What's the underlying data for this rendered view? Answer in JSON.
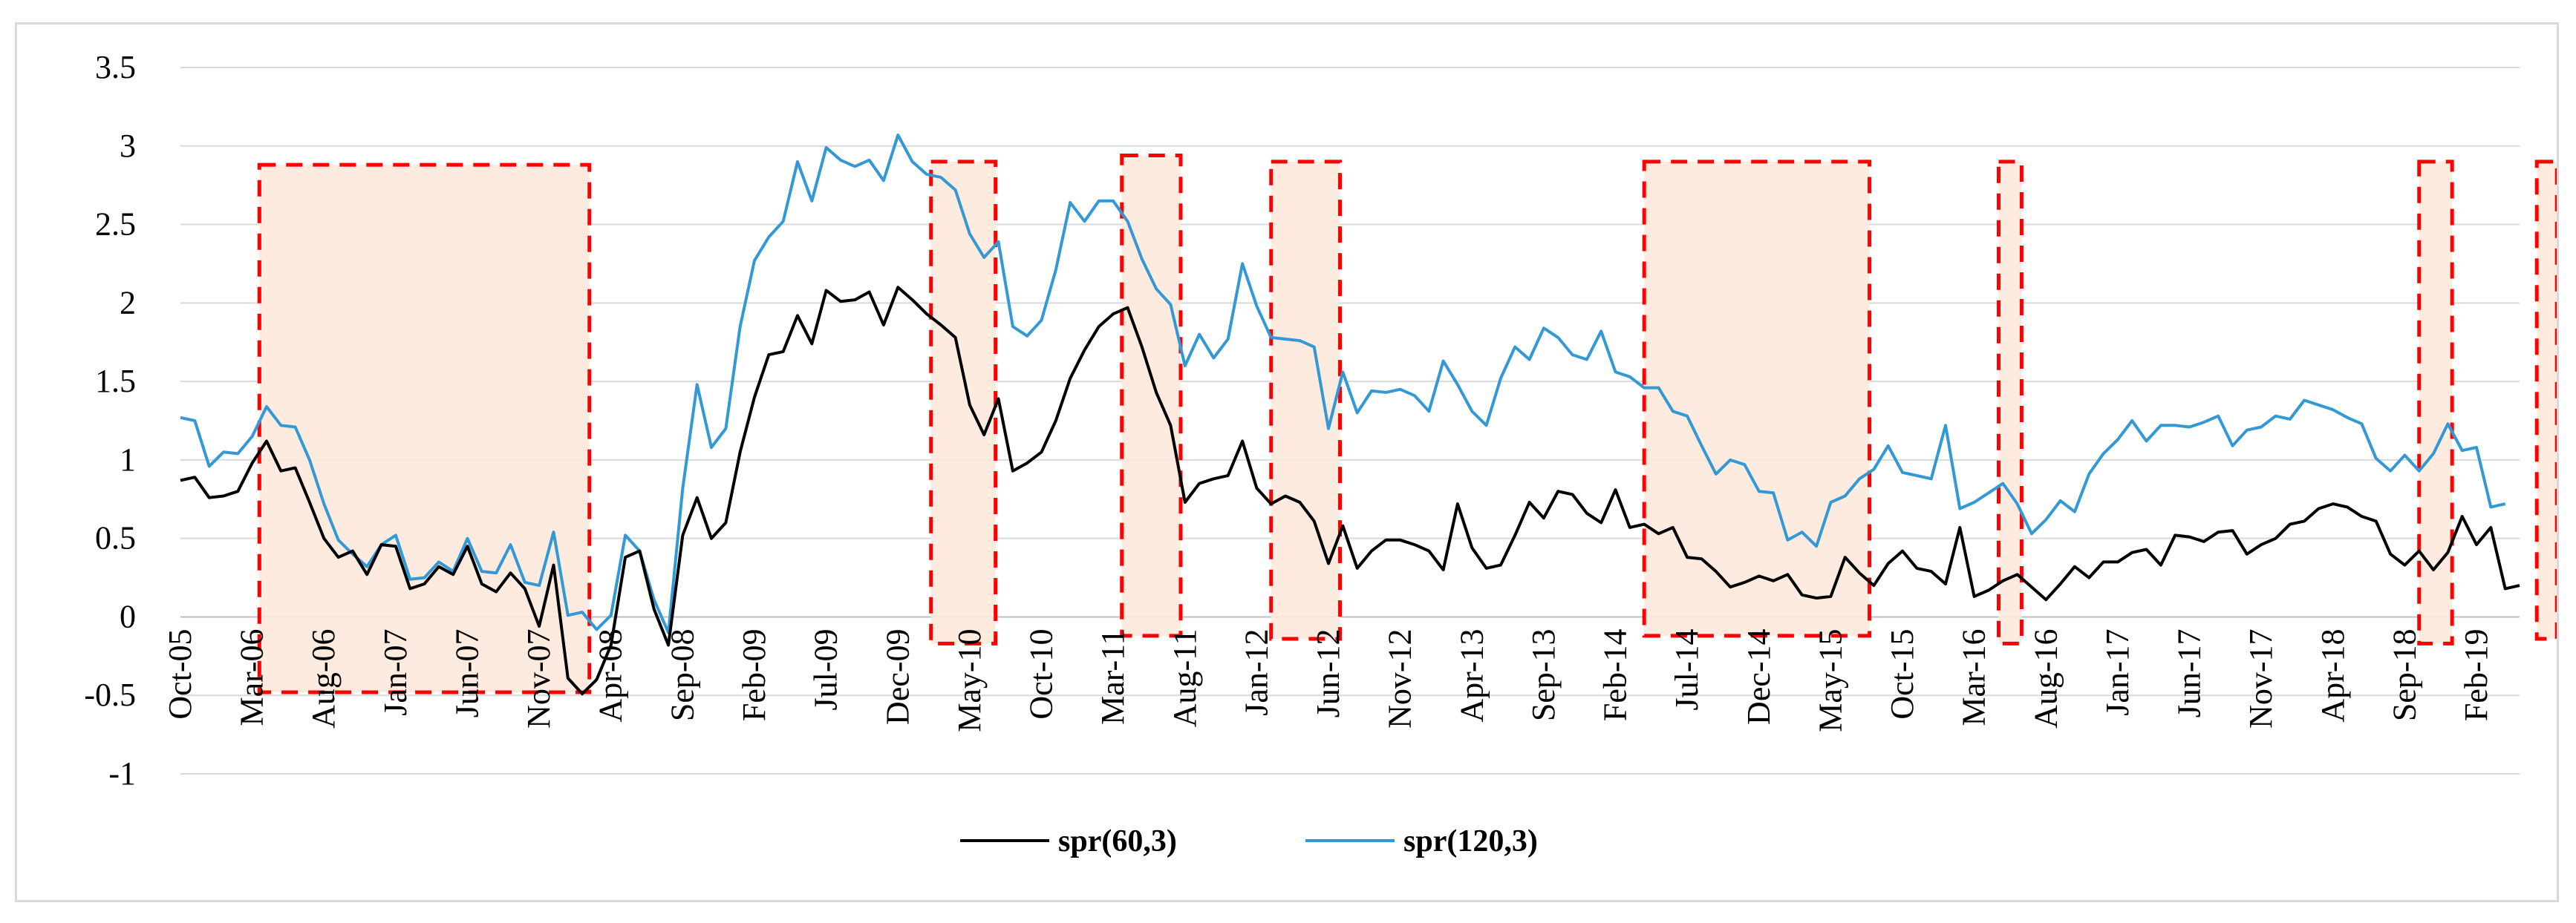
{
  "chart_data": {
    "type": "line",
    "title": "",
    "xlabel": "",
    "ylabel": "",
    "ylim": [
      -1,
      3.5
    ],
    "yticks": [
      -1,
      -0.5,
      0,
      0.5,
      1,
      1.5,
      2,
      2.5,
      3,
      3.5
    ],
    "ytick_labels": [
      "-1",
      "-0.5",
      "0",
      "0.5",
      "1",
      "1.5",
      "2",
      "2.5",
      "3",
      "3.5"
    ],
    "x_start": "Oct-05",
    "x_end": "Feb-19",
    "xtick_labels": [
      {
        "label": "Oct-05",
        "index": 0
      },
      {
        "label": "Mar-06",
        "index": 5
      },
      {
        "label": "Aug-06",
        "index": 10
      },
      {
        "label": "Jan-07",
        "index": 15
      },
      {
        "label": "Jun-07",
        "index": 20
      },
      {
        "label": "Nov-07",
        "index": 25
      },
      {
        "label": "Apr-08",
        "index": 30
      },
      {
        "label": "Sep-08",
        "index": 35
      },
      {
        "label": "Feb-09",
        "index": 40
      },
      {
        "label": "Jul-09",
        "index": 45
      },
      {
        "label": "Dec-09",
        "index": 50
      },
      {
        "label": "May-10",
        "index": 55
      },
      {
        "label": "Oct-10",
        "index": 60
      },
      {
        "label": "Mar-11",
        "index": 65
      },
      {
        "label": "Aug-11",
        "index": 70
      },
      {
        "label": "Jan-12",
        "index": 75
      },
      {
        "label": "Jun-12",
        "index": 80
      },
      {
        "label": "Nov-12",
        "index": 85
      },
      {
        "label": "Apr-13",
        "index": 90
      },
      {
        "label": "Sep-13",
        "index": 95
      },
      {
        "label": "Feb-14",
        "index": 100
      },
      {
        "label": "Jul-14",
        "index": 105
      },
      {
        "label": "Dec-14",
        "index": 110
      },
      {
        "label": "May-15",
        "index": 115
      },
      {
        "label": "Oct-15",
        "index": 120
      },
      {
        "label": "Mar-16",
        "index": 125
      },
      {
        "label": "Aug-16",
        "index": 130
      },
      {
        "label": "Jan-17",
        "index": 135
      },
      {
        "label": "Jun-17",
        "index": 140
      },
      {
        "label": "Nov-17",
        "index": 145
      },
      {
        "label": "Apr-18",
        "index": 150
      },
      {
        "label": "Sep-18",
        "index": 155
      },
      {
        "label": "Feb-19",
        "index": 160
      }
    ],
    "series": [
      {
        "name": "spr(60,3)",
        "color": "#000000",
        "values": [
          0.87,
          0.89,
          0.76,
          0.77,
          0.8,
          0.98,
          1.12,
          0.93,
          0.95,
          0.73,
          0.5,
          0.38,
          0.42,
          0.27,
          0.46,
          0.45,
          0.18,
          0.21,
          0.32,
          0.27,
          0.45,
          0.21,
          0.16,
          0.28,
          0.18,
          -0.06,
          0.33,
          -0.39,
          -0.49,
          -0.4,
          -0.18,
          0.38,
          0.42,
          0.05,
          -0.18,
          0.52,
          0.76,
          0.5,
          0.6,
          1.05,
          1.4,
          1.67,
          1.69,
          1.92,
          1.74,
          2.08,
          2.01,
          2.02,
          2.07,
          1.86,
          2.1,
          2.02,
          1.93,
          1.86,
          1.78,
          1.35,
          1.16,
          1.39,
          0.93,
          0.98,
          1.05,
          1.25,
          1.52,
          1.7,
          1.85,
          1.93,
          1.97,
          1.72,
          1.43,
          1.22,
          0.73,
          0.85,
          0.88,
          0.9,
          1.12,
          0.82,
          0.72,
          0.77,
          0.73,
          0.61,
          0.34,
          0.58,
          0.31,
          0.42,
          0.49,
          0.49,
          0.46,
          0.42,
          0.3,
          0.72,
          0.44,
          0.31,
          0.33,
          0.52,
          0.73,
          0.63,
          0.8,
          0.78,
          0.66,
          0.6,
          0.81,
          0.57,
          0.59,
          0.53,
          0.57,
          0.38,
          0.37,
          0.29,
          0.19,
          0.22,
          0.26,
          0.23,
          0.27,
          0.14,
          0.12,
          0.13,
          0.38,
          0.28,
          0.2,
          0.34,
          0.42,
          0.31,
          0.29,
          0.21,
          0.57,
          0.13,
          0.17,
          0.23,
          0.27,
          0.19,
          0.11,
          0.21,
          0.32,
          0.25,
          0.35,
          0.35,
          0.41,
          0.43,
          0.33,
          0.52,
          0.51,
          0.48,
          0.54,
          0.55,
          0.4,
          0.46,
          0.5,
          0.59,
          0.61,
          0.69,
          0.72,
          0.7,
          0.64,
          0.61,
          0.4,
          0.33,
          0.42,
          0.3,
          0.41,
          0.64,
          0.46,
          0.57,
          0.18,
          0.2
        ]
      },
      {
        "name": "spr(120,3)",
        "color": "#3399d6",
        "values": [
          1.27,
          1.25,
          0.96,
          1.05,
          1.04,
          1.15,
          1.34,
          1.22,
          1.21,
          1.0,
          0.72,
          0.49,
          0.4,
          0.32,
          0.46,
          0.52,
          0.24,
          0.25,
          0.35,
          0.29,
          0.5,
          0.29,
          0.28,
          0.46,
          0.22,
          0.2,
          0.54,
          0.01,
          0.03,
          -0.08,
          0.01,
          0.52,
          0.42,
          0.11,
          -0.1,
          0.82,
          1.48,
          1.08,
          1.2,
          1.85,
          2.27,
          2.42,
          2.52,
          2.9,
          2.65,
          2.99,
          2.91,
          2.87,
          2.91,
          2.78,
          3.07,
          2.9,
          2.82,
          2.8,
          2.72,
          2.44,
          2.29,
          2.39,
          1.85,
          1.79,
          1.89,
          2.21,
          2.64,
          2.52,
          2.65,
          2.65,
          2.52,
          2.28,
          2.09,
          1.99,
          1.6,
          1.8,
          1.65,
          1.77,
          2.25,
          1.98,
          1.78,
          1.77,
          1.76,
          1.72,
          1.2,
          1.56,
          1.3,
          1.44,
          1.43,
          1.45,
          1.41,
          1.31,
          1.63,
          1.48,
          1.31,
          1.22,
          1.52,
          1.72,
          1.64,
          1.84,
          1.78,
          1.67,
          1.64,
          1.82,
          1.56,
          1.53,
          1.46,
          1.46,
          1.31,
          1.28,
          1.09,
          0.91,
          1.0,
          0.97,
          0.8,
          0.79,
          0.49,
          0.54,
          0.45,
          0.73,
          0.77,
          0.88,
          0.94,
          1.09,
          0.92,
          0.9,
          0.88,
          1.22,
          0.69,
          0.73,
          0.79,
          0.85,
          0.72,
          0.53,
          0.62,
          0.74,
          0.67,
          0.91,
          1.04,
          1.13,
          1.25,
          1.12,
          1.22,
          1.22,
          1.21,
          1.24,
          1.28,
          1.09,
          1.19,
          1.21,
          1.28,
          1.26,
          1.38,
          1.35,
          1.32,
          1.27,
          1.23,
          1.01,
          0.93,
          1.03,
          0.93,
          1.04,
          1.23,
          1.06,
          1.08,
          0.7,
          0.72
        ]
      }
    ],
    "highlight_periods": [
      {
        "start": 5.5,
        "end": 28.5,
        "ymin": -0.48,
        "ymax": 2.88,
        "filled": true
      },
      {
        "start": 52.3,
        "end": 56.8,
        "ymin": -0.17,
        "ymax": 2.9,
        "filled": true
      },
      {
        "start": 65.6,
        "end": 69.7,
        "ymin": -0.12,
        "ymax": 2.94,
        "filled": true
      },
      {
        "start": 76.0,
        "end": 80.8,
        "ymin": -0.14,
        "ymax": 2.9,
        "filled": true
      },
      {
        "start": 102.0,
        "end": 117.7,
        "ymin": -0.12,
        "ymax": 2.9,
        "filled": true
      },
      {
        "start": 126.7,
        "end": 128.3,
        "ymin": -0.17,
        "ymax": 2.9,
        "filled": true
      },
      {
        "start": 156.0,
        "end": 158.3,
        "ymin": -0.17,
        "ymax": 2.9,
        "filled": true
      },
      {
        "start": 164.2,
        "end": 165.6,
        "ymin": -0.14,
        "ymax": 2.9,
        "filled": true
      }
    ],
    "legend_position": "bottom-center",
    "grid": true
  }
}
